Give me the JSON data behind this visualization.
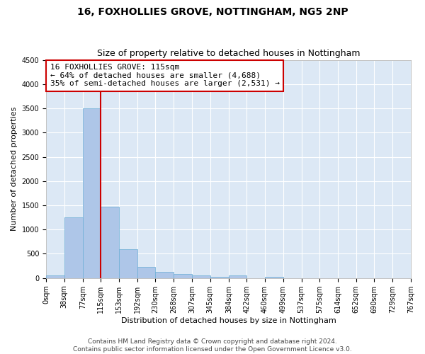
{
  "title1": "16, FOXHOLLIES GROVE, NOTTINGHAM, NG5 2NP",
  "title2": "Size of property relative to detached houses in Nottingham",
  "xlabel": "Distribution of detached houses by size in Nottingham",
  "ylabel": "Number of detached properties",
  "footer1": "Contains HM Land Registry data © Crown copyright and database right 2024.",
  "footer2": "Contains public sector information licensed under the Open Government Licence v3.0.",
  "bar_edges": [
    0,
    38,
    77,
    115,
    153,
    192,
    230,
    268,
    307,
    345,
    384,
    422,
    460,
    499,
    537,
    575,
    614,
    652,
    690,
    729,
    767
  ],
  "bar_heights": [
    50,
    1250,
    3500,
    1470,
    600,
    230,
    130,
    80,
    50,
    20,
    50,
    0,
    30,
    0,
    0,
    0,
    0,
    0,
    0,
    0
  ],
  "bar_color": "#aec6e8",
  "bar_edge_color": "#6aadd5",
  "vline_x": 115,
  "vline_color": "#cc0000",
  "annotation_line1": "16 FOXHOLLIES GROVE: 115sqm",
  "annotation_line2": "← 64% of detached houses are smaller (4,688)",
  "annotation_line3": "35% of semi-detached houses are larger (2,531) →",
  "annotation_box_color": "#cc0000",
  "ylim": [
    0,
    4500
  ],
  "yticks": [
    0,
    500,
    1000,
    1500,
    2000,
    2500,
    3000,
    3500,
    4000,
    4500
  ],
  "background_color": "#dce8f5",
  "grid_color": "#ffffff",
  "title1_fontsize": 10,
  "title2_fontsize": 9,
  "axis_label_fontsize": 8,
  "tick_fontsize": 7,
  "annotation_fontsize": 8,
  "footer_fontsize": 6.5
}
